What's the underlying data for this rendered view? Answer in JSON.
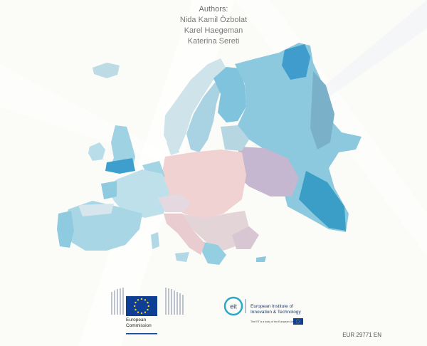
{
  "authors": {
    "heading": "Authors:",
    "names": [
      "Nida Kamil Özbolat",
      "Karel Haegeman",
      "Katerina Sereti"
    ]
  },
  "logos": {
    "ec": {
      "line1": "European",
      "line2": "Commission"
    },
    "eit": {
      "line1": "European Institute of",
      "line2": "Innovation & Technology",
      "sub": "The EIT is a body of the European Union"
    }
  },
  "report_number": "EUR 29771 EN",
  "colors": {
    "map_blue": "#6bb8d2",
    "map_dark_blue": "#2f8db3",
    "map_pink": "#f0d2d2",
    "eu_blue": "#0e3f94",
    "eu_star": "#f8d41b"
  }
}
